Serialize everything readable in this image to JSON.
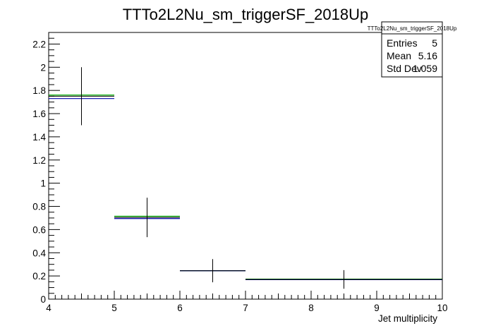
{
  "chart_data": {
    "type": "histogram",
    "title": "TTTo2L2Nu_sm_triggerSF_2018Up",
    "xlabel": "Jet multiplicity",
    "ylabel": "",
    "xlim": [
      4,
      10
    ],
    "ylim": [
      0,
      2.3
    ],
    "x_ticks": [
      "4",
      "5",
      "6",
      "7",
      "8",
      "9",
      "10"
    ],
    "y_ticks": [
      "0",
      "0.2",
      "0.4",
      "0.6",
      "0.8",
      "1",
      "1.2",
      "1.4",
      "1.6",
      "1.8",
      "2",
      "2.2"
    ],
    "bins": [
      {
        "x_low": 4,
        "x_high": 5,
        "x_center": 4.5,
        "value": 1.75,
        "err_low": 1.5,
        "err_high": 2.0
      },
      {
        "x_low": 5,
        "x_high": 6,
        "x_center": 5.5,
        "value": 0.705,
        "err_low": 0.535,
        "err_high": 0.875
      },
      {
        "x_low": 6,
        "x_high": 7,
        "x_center": 6.5,
        "value": 0.245,
        "err_low": 0.145,
        "err_high": 0.345
      },
      {
        "x_low": 7,
        "x_high": 10,
        "x_center": 8.5,
        "value": 0.17,
        "err_low": 0.09,
        "err_high": 0.25
      }
    ],
    "overlay_series": [
      {
        "color": "#00aa00",
        "values": [
          1.76,
          0.715,
          0.245,
          0.173
        ]
      },
      {
        "color": "#0000aa",
        "values": [
          1.73,
          0.695,
          0.245,
          0.168
        ]
      }
    ],
    "stats_box": {
      "title": "TTTo2L2Nu_sm_triggerSF_2018Up",
      "rows": [
        {
          "label": "Entries",
          "value": "5"
        },
        {
          "label": "Mean",
          "value": "5.16"
        },
        {
          "label": "Std Dev",
          "value": "1.059"
        }
      ]
    }
  }
}
